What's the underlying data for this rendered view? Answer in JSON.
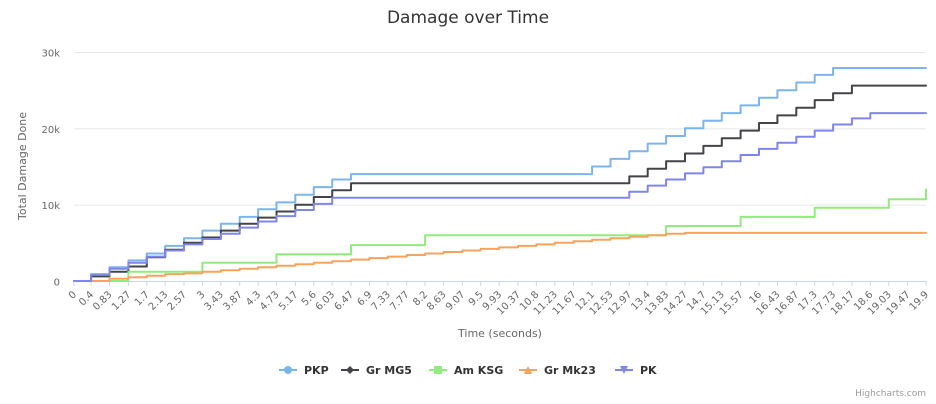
{
  "chart_data": {
    "type": "line",
    "title": "Damage over Time",
    "xlabel": "Time (seconds)",
    "ylabel": "Total Damage Done",
    "xlim": [
      0,
      19.9
    ],
    "ylim": [
      0,
      30000
    ],
    "y_ticks": [
      0,
      10000,
      20000,
      30000
    ],
    "y_tick_labels": [
      "0",
      "10k",
      "20k",
      "30k"
    ],
    "x_tick_labels": [
      "0",
      "0.4",
      "0.83",
      "1.27",
      "1.7",
      "2.13",
      "2.57",
      "3",
      "3.43",
      "3.87",
      "4.3",
      "4.73",
      "5.17",
      "5.6",
      "6.03",
      "6.47",
      "6.9",
      "7.33",
      "7.77",
      "8.2",
      "8.63",
      "9.07",
      "9.5",
      "9.93",
      "10.37",
      "10.8",
      "11.23",
      "11.67",
      "12.1",
      "12.53",
      "12.97",
      "13.4",
      "13.83",
      "14.27",
      "14.7",
      "15.13",
      "15.57",
      "16",
      "16.43",
      "16.87",
      "17.3",
      "17.73",
      "18.17",
      "18.6",
      "19.03",
      "19.47",
      "19.9"
    ],
    "grid": true,
    "legend_position": "bottom",
    "credits": "Highcharts.com",
    "series": [
      {
        "name": "PKP",
        "color": "#7cb5ec",
        "marker": "circle",
        "points": [
          [
            0,
            0
          ],
          [
            0.4,
            900
          ],
          [
            0.83,
            1800
          ],
          [
            1.27,
            2700
          ],
          [
            1.7,
            3600
          ],
          [
            2.13,
            4600
          ],
          [
            2.57,
            5600
          ],
          [
            3,
            6600
          ],
          [
            3.43,
            7500
          ],
          [
            3.87,
            8400
          ],
          [
            4.3,
            9400
          ],
          [
            4.73,
            10300
          ],
          [
            5.17,
            11300
          ],
          [
            5.6,
            12300
          ],
          [
            6.03,
            13300
          ],
          [
            6.47,
            14000
          ],
          [
            11.67,
            14000
          ],
          [
            12.1,
            15000
          ],
          [
            12.53,
            16000
          ],
          [
            12.97,
            17000
          ],
          [
            13.4,
            18000
          ],
          [
            13.83,
            19000
          ],
          [
            14.27,
            20000
          ],
          [
            14.7,
            21000
          ],
          [
            15.13,
            22000
          ],
          [
            15.57,
            23000
          ],
          [
            16,
            24000
          ],
          [
            16.43,
            25000
          ],
          [
            16.87,
            26000
          ],
          [
            17.3,
            27000
          ],
          [
            17.73,
            27900
          ],
          [
            19.9,
            27900
          ]
        ]
      },
      {
        "name": "Gr MG5",
        "color": "#434348",
        "marker": "diamond",
        "points": [
          [
            0,
            0
          ],
          [
            0.4,
            600
          ],
          [
            0.83,
            1200
          ],
          [
            1.27,
            1900
          ],
          [
            1.7,
            3100
          ],
          [
            2.13,
            4100
          ],
          [
            2.57,
            5000
          ],
          [
            3,
            5700
          ],
          [
            3.43,
            6600
          ],
          [
            3.87,
            7500
          ],
          [
            4.3,
            8300
          ],
          [
            4.73,
            9100
          ],
          [
            5.17,
            10000
          ],
          [
            5.6,
            11000
          ],
          [
            6.03,
            11900
          ],
          [
            6.47,
            12800
          ],
          [
            12.53,
            12800
          ],
          [
            12.97,
            13700
          ],
          [
            13.4,
            14700
          ],
          [
            13.83,
            15700
          ],
          [
            14.27,
            16700
          ],
          [
            14.7,
            17700
          ],
          [
            15.13,
            18700
          ],
          [
            15.57,
            19700
          ],
          [
            16,
            20700
          ],
          [
            16.43,
            21700
          ],
          [
            16.87,
            22700
          ],
          [
            17.3,
            23700
          ],
          [
            17.73,
            24600
          ],
          [
            18.17,
            25600
          ],
          [
            19.9,
            25600
          ]
        ]
      },
      {
        "name": "Am KSG",
        "color": "#90ed7d",
        "marker": "square",
        "points": [
          [
            0,
            0
          ],
          [
            1.27,
            1200
          ],
          [
            3,
            2400
          ],
          [
            4.73,
            3500
          ],
          [
            6.47,
            4700
          ],
          [
            8.2,
            6000
          ],
          [
            13.83,
            7200
          ],
          [
            15.57,
            8400
          ],
          [
            17.3,
            9600
          ],
          [
            19.03,
            10700
          ],
          [
            20.6,
            12000
          ],
          [
            19.9,
            12000
          ]
        ]
      },
      {
        "name": "Gr Mk23",
        "color": "#f7a35c",
        "marker": "triangle",
        "points": [
          [
            0,
            0
          ],
          [
            0.83,
            300
          ],
          [
            1.27,
            500
          ],
          [
            1.7,
            700
          ],
          [
            2.13,
            900
          ],
          [
            2.57,
            1000
          ],
          [
            3,
            1200
          ],
          [
            3.43,
            1400
          ],
          [
            3.87,
            1600
          ],
          [
            4.3,
            1800
          ],
          [
            4.73,
            2000
          ],
          [
            5.17,
            2200
          ],
          [
            5.6,
            2400
          ],
          [
            6.03,
            2600
          ],
          [
            6.47,
            2800
          ],
          [
            6.9,
            3000
          ],
          [
            7.33,
            3200
          ],
          [
            7.77,
            3400
          ],
          [
            8.2,
            3600
          ],
          [
            8.63,
            3800
          ],
          [
            9.07,
            4000
          ],
          [
            9.5,
            4200
          ],
          [
            9.93,
            4400
          ],
          [
            10.37,
            4600
          ],
          [
            10.8,
            4800
          ],
          [
            11.23,
            5000
          ],
          [
            11.67,
            5200
          ],
          [
            12.1,
            5400
          ],
          [
            12.53,
            5600
          ],
          [
            12.97,
            5800
          ],
          [
            13.4,
            6000
          ],
          [
            13.83,
            6200
          ],
          [
            14.27,
            6300
          ],
          [
            19.9,
            6300
          ]
        ]
      },
      {
        "name": "PK",
        "color": "#8085e9",
        "marker": "triangle-down",
        "points": [
          [
            0,
            0
          ],
          [
            0.4,
            800
          ],
          [
            0.83,
            1600
          ],
          [
            1.27,
            2400
          ],
          [
            1.7,
            3200
          ],
          [
            2.13,
            4000
          ],
          [
            2.57,
            4800
          ],
          [
            3,
            5500
          ],
          [
            3.43,
            6200
          ],
          [
            3.87,
            7000
          ],
          [
            4.3,
            7800
          ],
          [
            4.73,
            8500
          ],
          [
            5.17,
            9300
          ],
          [
            5.6,
            10100
          ],
          [
            6.03,
            10900
          ],
          [
            12.53,
            10900
          ],
          [
            12.97,
            11700
          ],
          [
            13.4,
            12500
          ],
          [
            13.83,
            13300
          ],
          [
            14.27,
            14100
          ],
          [
            14.7,
            14900
          ],
          [
            15.13,
            15700
          ],
          [
            15.57,
            16500
          ],
          [
            16,
            17300
          ],
          [
            16.43,
            18100
          ],
          [
            16.87,
            18900
          ],
          [
            17.3,
            19700
          ],
          [
            17.73,
            20500
          ],
          [
            18.17,
            21300
          ],
          [
            18.6,
            22000
          ],
          [
            19.9,
            22000
          ]
        ]
      }
    ]
  }
}
